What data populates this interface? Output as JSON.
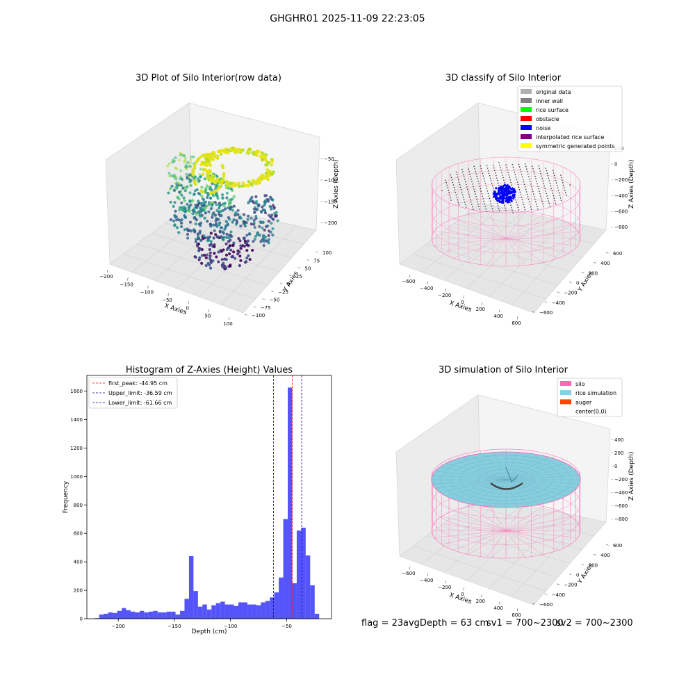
{
  "suptitle": "GHGHR01 2025-11-09 22:23:05",
  "colors": {
    "hist_bar": "#4b4bfa",
    "first_peak_line": "#ff0000",
    "limit_line": "#00008b",
    "silo_wire": "#ff69b4",
    "rice_surface": "#87cedf",
    "classified_noise": "#0000ff"
  },
  "panels": {
    "raw": {
      "title": "3D Plot of Silo Interior(row data)",
      "xlabel": "X Axies",
      "ylabel": "Y Axies",
      "zlabel": "Z Axies (Depth)",
      "xticks": [
        "−200",
        "−150",
        "−100",
        "−50",
        "0",
        "50",
        "100"
      ],
      "yticks": [
        "−100",
        "−75",
        "−50",
        "−25",
        "0",
        "25",
        "50",
        "75",
        "100"
      ],
      "zticks": [
        "−50",
        "−100",
        "−150",
        "−200"
      ]
    },
    "classify": {
      "title": "3D classify of Silo Interior",
      "xlabel": "X Axies",
      "ylabel": "Y Axies",
      "zlabel": "Z Axies (Depth)",
      "xticks": [
        "−600",
        "−400",
        "−200",
        "0",
        "200",
        "400",
        "600"
      ],
      "yticks": [
        "−600",
        "−400",
        "−200",
        "0",
        "200",
        "400",
        "600"
      ],
      "zticks": [
        "200",
        "0",
        "−200",
        "−400",
        "−600",
        "−800"
      ],
      "legend": [
        {
          "label": "original data",
          "color": "#b0b0b0"
        },
        {
          "label": "inner wall",
          "color": "#808080"
        },
        {
          "label": "rice surface",
          "color": "#00ff00"
        },
        {
          "label": "obstacle",
          "color": "#ff0000"
        },
        {
          "label": "noise",
          "color": "#0000ff"
        },
        {
          "label": "interpolated rice surface",
          "color": "#800080"
        },
        {
          "label": "symmetric generated points",
          "color": "#ffff00"
        }
      ]
    },
    "simulation": {
      "title": "3D simulation of Silo Interior",
      "xlabel": "X Axies",
      "ylabel": "Y Axies",
      "zlabel": "Z Axies (Depth)",
      "xticks": [
        "−600",
        "−400",
        "−200",
        "0",
        "200",
        "400",
        "600"
      ],
      "yticks": [
        "−600",
        "−400",
        "−200",
        "0",
        "200",
        "400",
        "600"
      ],
      "zticks": [
        "400",
        "200",
        "0",
        "−200",
        "−400",
        "−600",
        "−800"
      ],
      "legend": [
        {
          "label": "silo",
          "color": "#ff69b4"
        },
        {
          "label": "rice simulation",
          "color": "#87ceeb"
        },
        {
          "label": "auger",
          "color": "#ff4500"
        },
        {
          "label": "center(0,0)",
          "color": "none"
        }
      ]
    }
  },
  "chart_data": {
    "type": "bar",
    "title": "Histogram of Z-Axies (Height) Values",
    "xlabel": "Depth (cm)",
    "ylabel": "Frequency",
    "xlim": [
      -228,
      -10
    ],
    "ylim": [
      0,
      1710
    ],
    "xticks": [
      -200,
      -150,
      -100,
      -50
    ],
    "yticks": [
      0,
      200,
      400,
      600,
      800,
      1000,
      1200,
      1400,
      1600
    ],
    "bin_start": -221.0,
    "bin_width": 4.0,
    "counts": [
      4,
      30,
      35,
      45,
      40,
      55,
      75,
      60,
      50,
      45,
      55,
      45,
      50,
      55,
      45,
      45,
      50,
      50,
      30,
      55,
      140,
      440,
      195,
      85,
      100,
      65,
      95,
      110,
      120,
      100,
      100,
      90,
      115,
      115,
      100,
      100,
      95,
      115,
      125,
      150,
      185,
      290,
      700,
      1625,
      250,
      620,
      640,
      445,
      235,
      35
    ],
    "lines": [
      {
        "label": "first_peak: -44.95 cm",
        "value": -44.95,
        "color": "#ff0000"
      },
      {
        "label": "Upper_limit: -36.59 cm",
        "value": -36.59,
        "color": "#00008b"
      },
      {
        "label": "Lower_limit: -61.66 cm",
        "value": -61.66,
        "color": "#00008b"
      }
    ],
    "legend_position": "upper left"
  },
  "footer": {
    "flag": "flag = 23",
    "avg_depth": "avgDepth = 63 cm",
    "sv1": "sv1 = 700~2300",
    "sv2": "sv2 = 700~2300"
  }
}
